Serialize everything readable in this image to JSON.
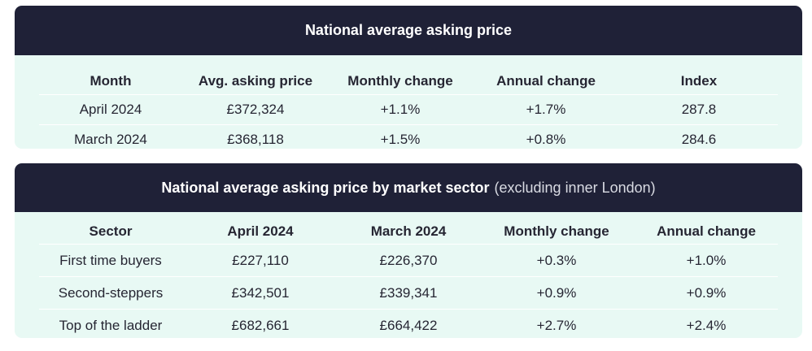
{
  "table1": {
    "title": "National average asking price",
    "headers": [
      "Month",
      "Avg. asking price",
      "Monthly change",
      "Annual change",
      "Index"
    ],
    "rows": [
      [
        "April 2024",
        "£372,324",
        "+1.1%",
        "+1.7%",
        "287.8"
      ],
      [
        "March 2024",
        "£368,118",
        "+1.5%",
        "+0.8%",
        "284.6"
      ]
    ]
  },
  "table2": {
    "title_bold": "National average asking price by market sector",
    "title_light": "(excluding inner London)",
    "headers": [
      "Sector",
      "April 2024",
      "March 2024",
      "Monthly change",
      "Annual change"
    ],
    "rows": [
      [
        "First time buyers",
        "£227,110",
        "£226,370",
        "+0.3%",
        "+1.0%"
      ],
      [
        "Second-steppers",
        "£342,501",
        "£339,341",
        "+0.9%",
        "+0.9%"
      ],
      [
        "Top of the ladder",
        "£682,661",
        "£664,422",
        "+2.7%",
        "+2.4%"
      ]
    ]
  },
  "colors": {
    "header_bg": "#1f2137",
    "card_bg": "#e8f9f4",
    "text": "#262633"
  }
}
